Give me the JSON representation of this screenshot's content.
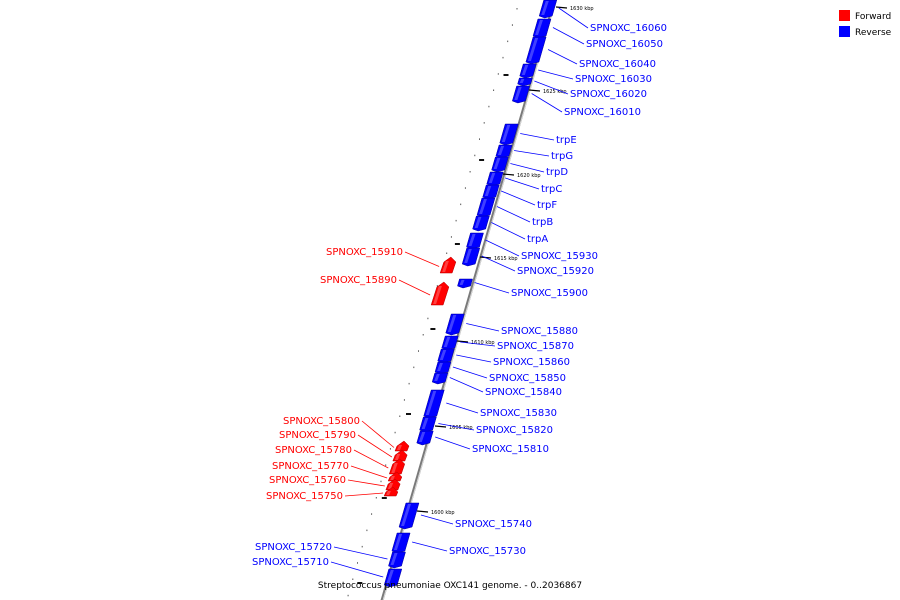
{
  "legend": {
    "forward_label": "Forward",
    "reverse_label": "Reverse",
    "forward_color": "#ff0000",
    "reverse_color": "#0000ff"
  },
  "caption": "Streptococcus pneumoniae OXC141 genome. - 0..2036867",
  "kbp_labels": [
    "1630 kbp",
    "1625 kbp",
    "1620 kbp",
    "1615 kbp",
    "1610 kbp",
    "1605 kbp",
    "1600 kbp"
  ],
  "genes": [
    {
      "name": "SPNOXC_16060",
      "strand": "reverse"
    },
    {
      "name": "SPNOXC_16050",
      "strand": "reverse"
    },
    {
      "name": "SPNOXC_16040",
      "strand": "reverse"
    },
    {
      "name": "SPNOXC_16030",
      "strand": "reverse"
    },
    {
      "name": "SPNOXC_16020",
      "strand": "reverse"
    },
    {
      "name": "SPNOXC_16010",
      "strand": "reverse"
    },
    {
      "name": "trpE",
      "strand": "reverse"
    },
    {
      "name": "trpG",
      "strand": "reverse"
    },
    {
      "name": "trpD",
      "strand": "reverse"
    },
    {
      "name": "trpC",
      "strand": "reverse"
    },
    {
      "name": "trpF",
      "strand": "reverse"
    },
    {
      "name": "trpB",
      "strand": "reverse"
    },
    {
      "name": "trpA",
      "strand": "reverse"
    },
    {
      "name": "SPNOXC_15930",
      "strand": "reverse"
    },
    {
      "name": "SPNOXC_15920",
      "strand": "reverse"
    },
    {
      "name": "SPNOXC_15900",
      "strand": "reverse"
    },
    {
      "name": "SPNOXC_15880",
      "strand": "reverse"
    },
    {
      "name": "SPNOXC_15870",
      "strand": "reverse"
    },
    {
      "name": "SPNOXC_15860",
      "strand": "reverse"
    },
    {
      "name": "SPNOXC_15850",
      "strand": "reverse"
    },
    {
      "name": "SPNOXC_15840",
      "strand": "reverse"
    },
    {
      "name": "SPNOXC_15830",
      "strand": "reverse"
    },
    {
      "name": "SPNOXC_15820",
      "strand": "reverse"
    },
    {
      "name": "SPNOXC_15810",
      "strand": "reverse"
    },
    {
      "name": "SPNOXC_15740",
      "strand": "reverse"
    },
    {
      "name": "SPNOXC_15730",
      "strand": "reverse"
    },
    {
      "name": "SPNOXC_15720",
      "strand": "reverse"
    },
    {
      "name": "SPNOXC_15710",
      "strand": "reverse"
    },
    {
      "name": "SPNOXC_15910",
      "strand": "forward"
    },
    {
      "name": "SPNOXC_15890",
      "strand": "forward"
    },
    {
      "name": "SPNOXC_15800",
      "strand": "forward"
    },
    {
      "name": "SPNOXC_15790",
      "strand": "forward"
    },
    {
      "name": "SPNOXC_15780",
      "strand": "forward"
    },
    {
      "name": "SPNOXC_15770",
      "strand": "forward"
    },
    {
      "name": "SPNOXC_15760",
      "strand": "forward"
    },
    {
      "name": "SPNOXC_15750",
      "strand": "forward"
    }
  ]
}
